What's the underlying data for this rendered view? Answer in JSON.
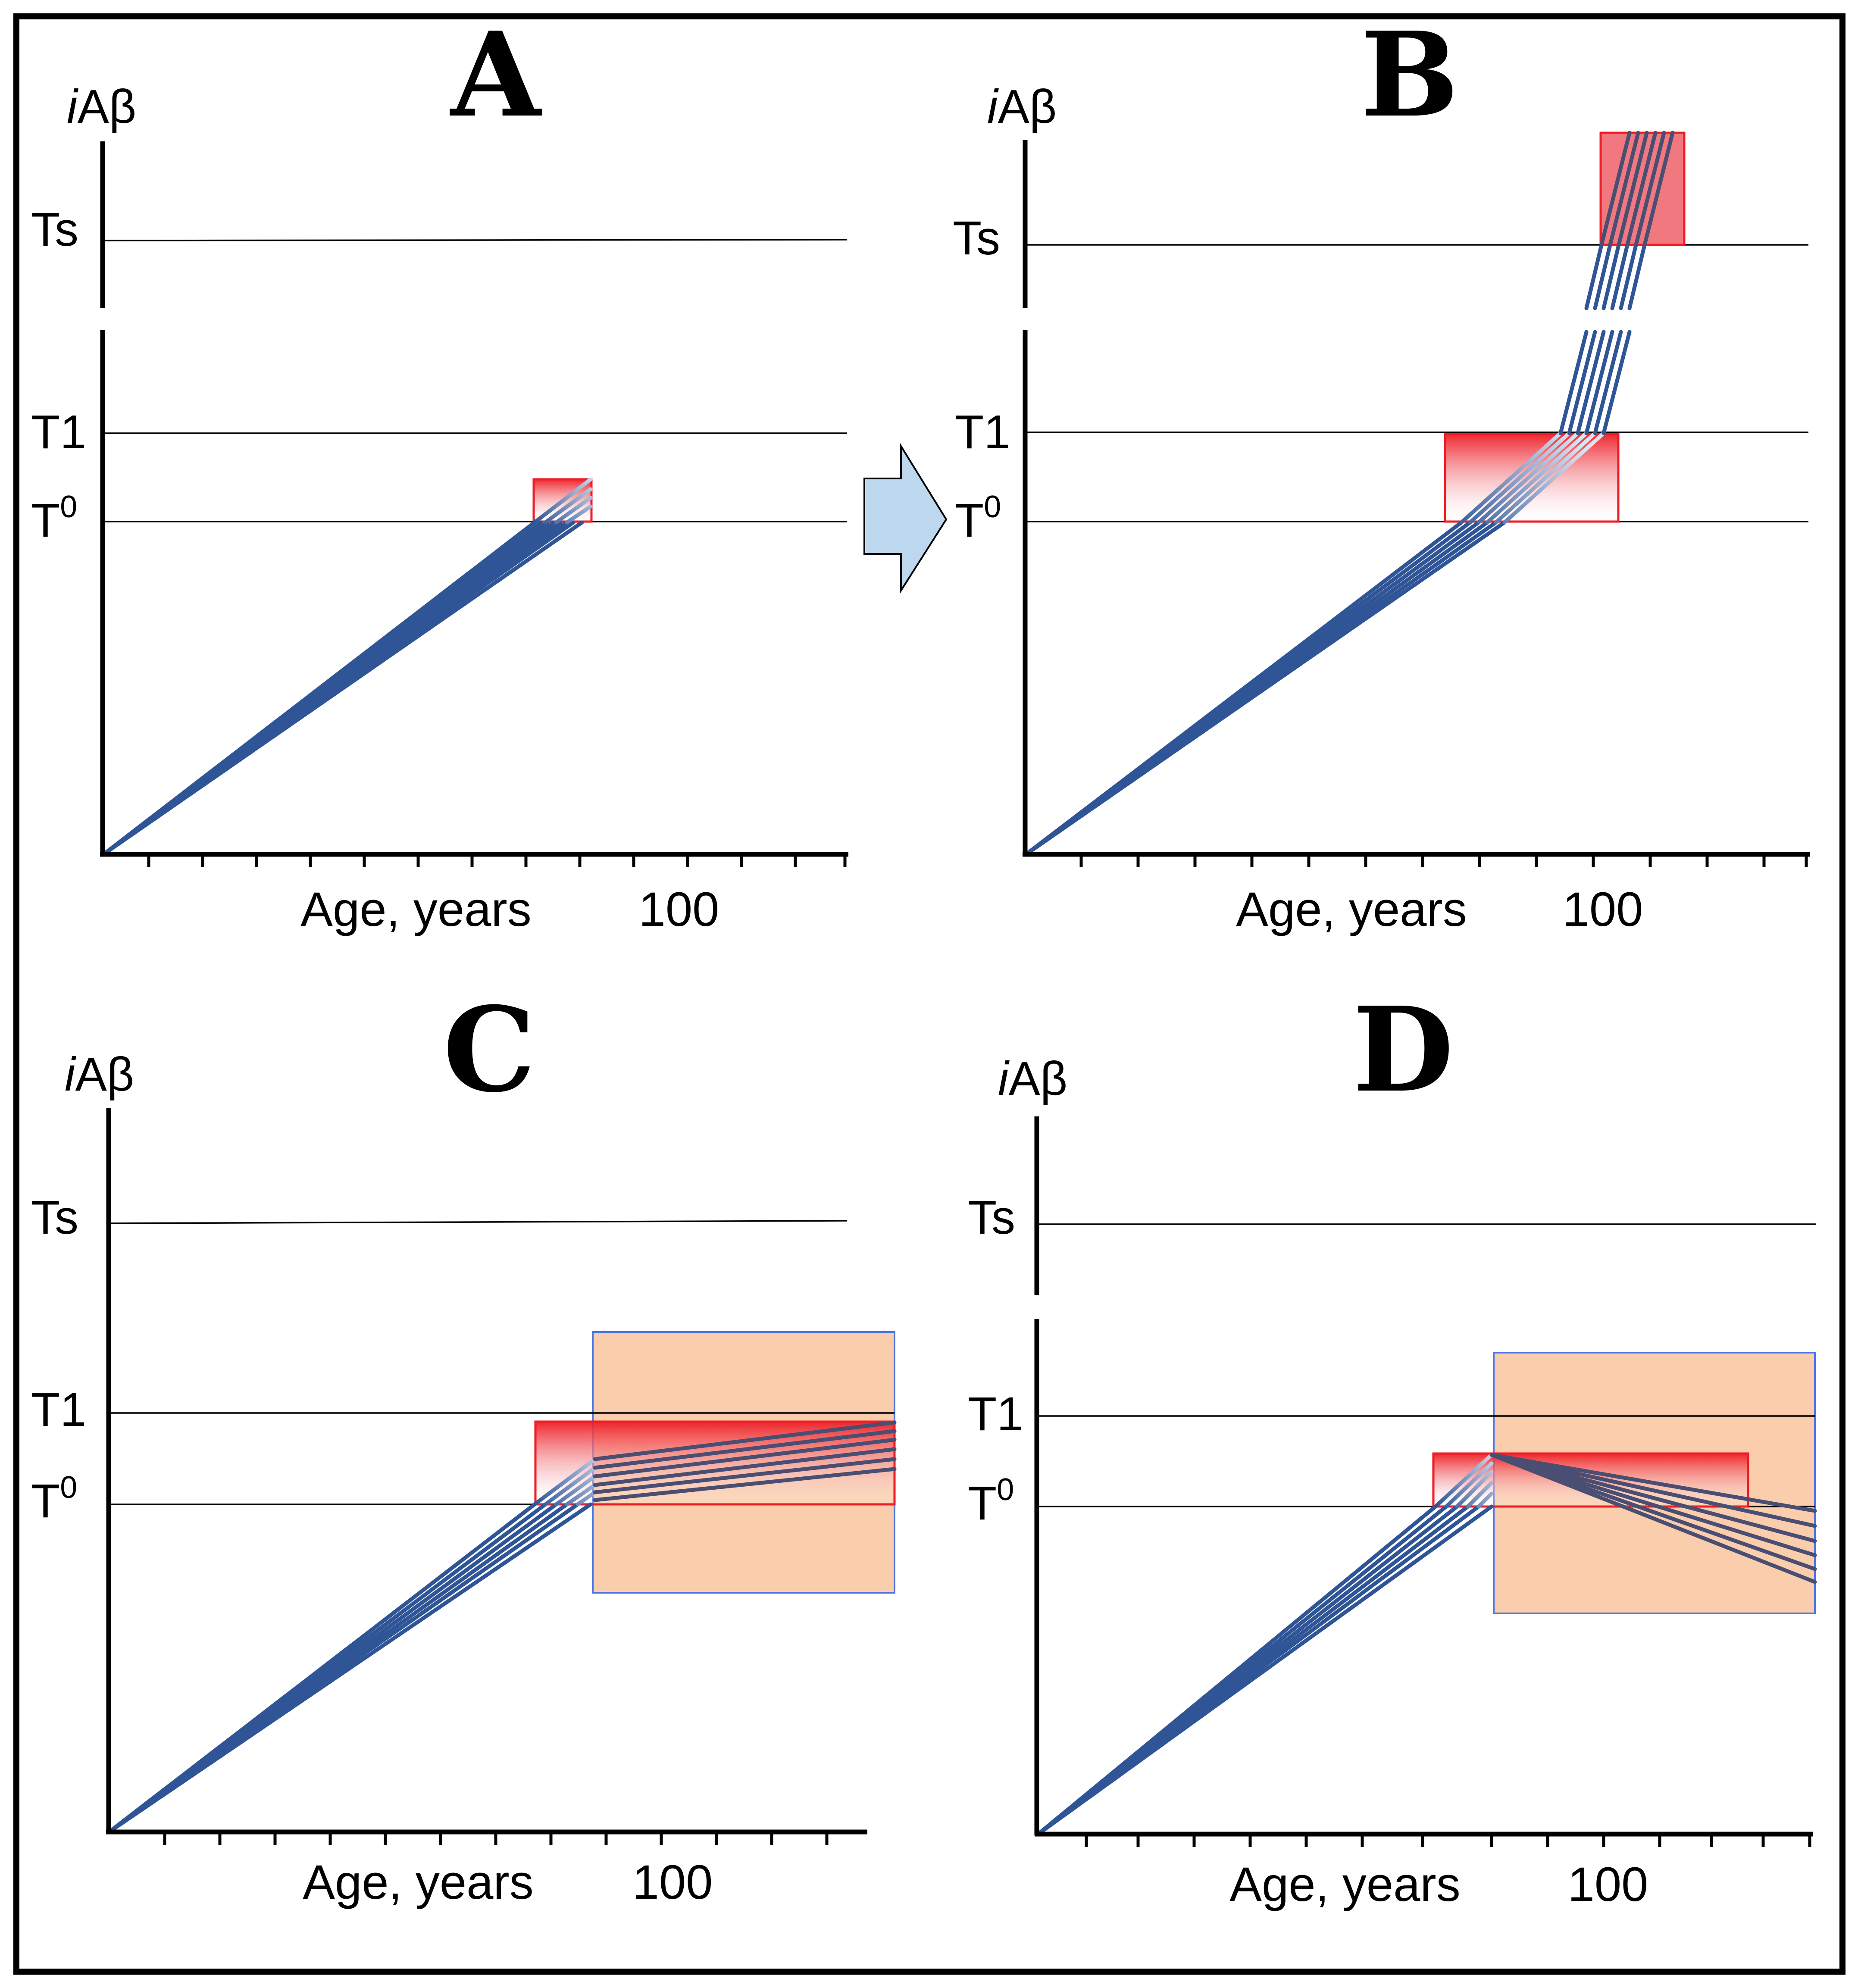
{
  "colors": {
    "trajectory": "#2f5597",
    "trajectory_late": "#4a4e72",
    "red_box": "#ee1c24",
    "orange_box": "#f9c9a3",
    "blue_box": "#4a74e6",
    "arrow_fill": "#bdd7ee"
  },
  "panels": [
    {
      "letter": "A",
      "ylabel_italic": "i",
      "ylabel_rest": "Aβ",
      "threshold_s": "Ts",
      "threshold_1": "T1",
      "threshold_0_base": "T",
      "threshold_0_sup": "0",
      "xlabel": "Age, years",
      "tick_100": "100",
      "scenario": "trajectories reach T0 near age 100"
    },
    {
      "letter": "B",
      "ylabel_italic": "i",
      "ylabel_rest": "Aβ",
      "threshold_s": "Ts",
      "threshold_1": "T1",
      "threshold_0_base": "T",
      "threshold_0_sup": "0",
      "xlabel": "Age, years",
      "tick_100": "100",
      "scenario": "trajectories cross T1 and accelerate to Ts"
    },
    {
      "letter": "C",
      "ylabel_italic": "i",
      "ylabel_rest": "Aβ",
      "threshold_s": "Ts",
      "threshold_1": "T1",
      "threshold_0_base": "T",
      "threshold_0_sup": "0",
      "xlabel": "Age, years",
      "tick_100": "100",
      "scenario": "after intervention trajectories stay between T0 and T1"
    },
    {
      "letter": "D",
      "ylabel_italic": "i",
      "ylabel_rest": "Aβ",
      "threshold_s": "Ts",
      "threshold_1": "T1",
      "threshold_0_base": "T",
      "threshold_0_sup": "0",
      "xlabel": "Age, years",
      "tick_100": "100",
      "scenario": "after intervention trajectories decline below T0"
    }
  ]
}
